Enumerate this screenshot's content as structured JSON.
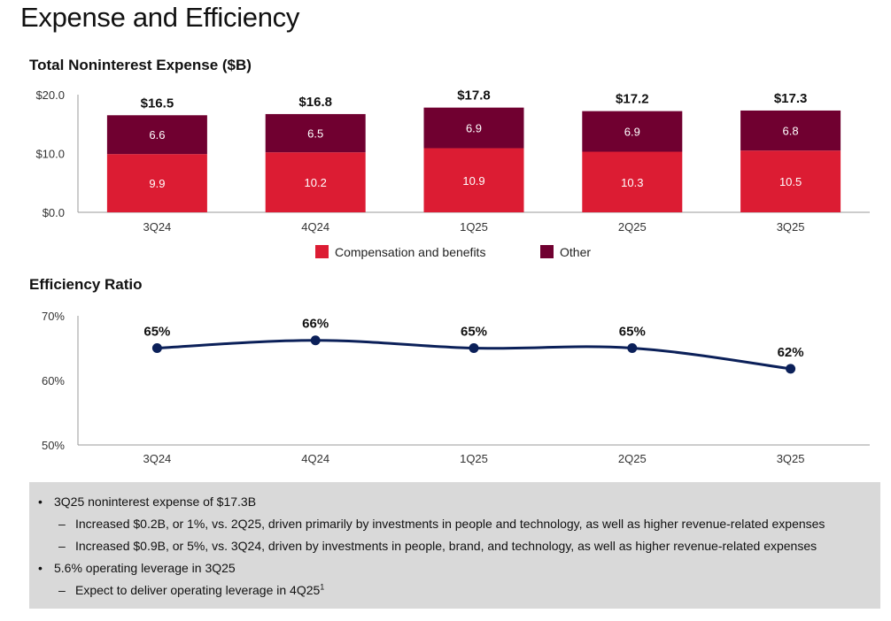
{
  "page": {
    "title": "Expense and Efficiency"
  },
  "colors": {
    "comp": "#dc1c33",
    "other": "#700030",
    "line": "#0b2059",
    "axis": "#9a9a9a",
    "notes_bg": "#d9d9d9"
  },
  "chart_data": [
    {
      "type": "bar",
      "stacked": true,
      "title": "Total Noninterest Expense ($B)",
      "categories": [
        "3Q24",
        "4Q24",
        "1Q25",
        "2Q25",
        "3Q25"
      ],
      "series": [
        {
          "name": "Compensation and benefits",
          "values": [
            9.9,
            10.2,
            10.9,
            10.3,
            10.5
          ],
          "labels": [
            "9.9",
            "10.2",
            "10.9",
            "10.3",
            "10.5"
          ]
        },
        {
          "name": "Other",
          "values": [
            6.6,
            6.5,
            6.9,
            6.9,
            6.8
          ],
          "labels": [
            "6.6",
            "6.5",
            "6.9",
            "6.9",
            "6.8"
          ]
        }
      ],
      "totals": [
        "$16.5",
        "$16.8",
        "$17.8",
        "$17.2",
        "$17.3"
      ],
      "yticks": [
        "$0.0",
        "$10.0",
        "$20.0"
      ],
      "ylim": [
        0,
        20
      ],
      "legend_position": "bottom-center"
    },
    {
      "type": "line",
      "title": "Efficiency Ratio",
      "categories": [
        "3Q24",
        "4Q24",
        "1Q25",
        "2Q25",
        "3Q25"
      ],
      "series": [
        {
          "name": "Efficiency Ratio",
          "values": [
            65,
            66.2,
            65,
            65,
            61.8
          ],
          "labels": [
            "65%",
            "66%",
            "65%",
            "65%",
            "62%"
          ]
        }
      ],
      "yticks": [
        "50%",
        "60%",
        "70%"
      ],
      "ylim": [
        50,
        70
      ]
    }
  ],
  "notes": {
    "items": [
      {
        "text": "3Q25 noninterest expense of $17.3B",
        "sub": [
          {
            "text": "Increased $0.2B, or 1%, vs. 2Q25, driven primarily by investments in people and technology, as well as higher revenue-related expenses"
          },
          {
            "text": "Increased $0.9B, or 5%, vs. 3Q24, driven by investments in people, brand, and technology, as well as higher revenue-related expenses"
          }
        ]
      },
      {
        "text": "5.6% operating leverage in 3Q25",
        "sub": [
          {
            "text": "Expect to deliver operating leverage in 4Q25",
            "footnote": "1"
          }
        ]
      }
    ]
  }
}
